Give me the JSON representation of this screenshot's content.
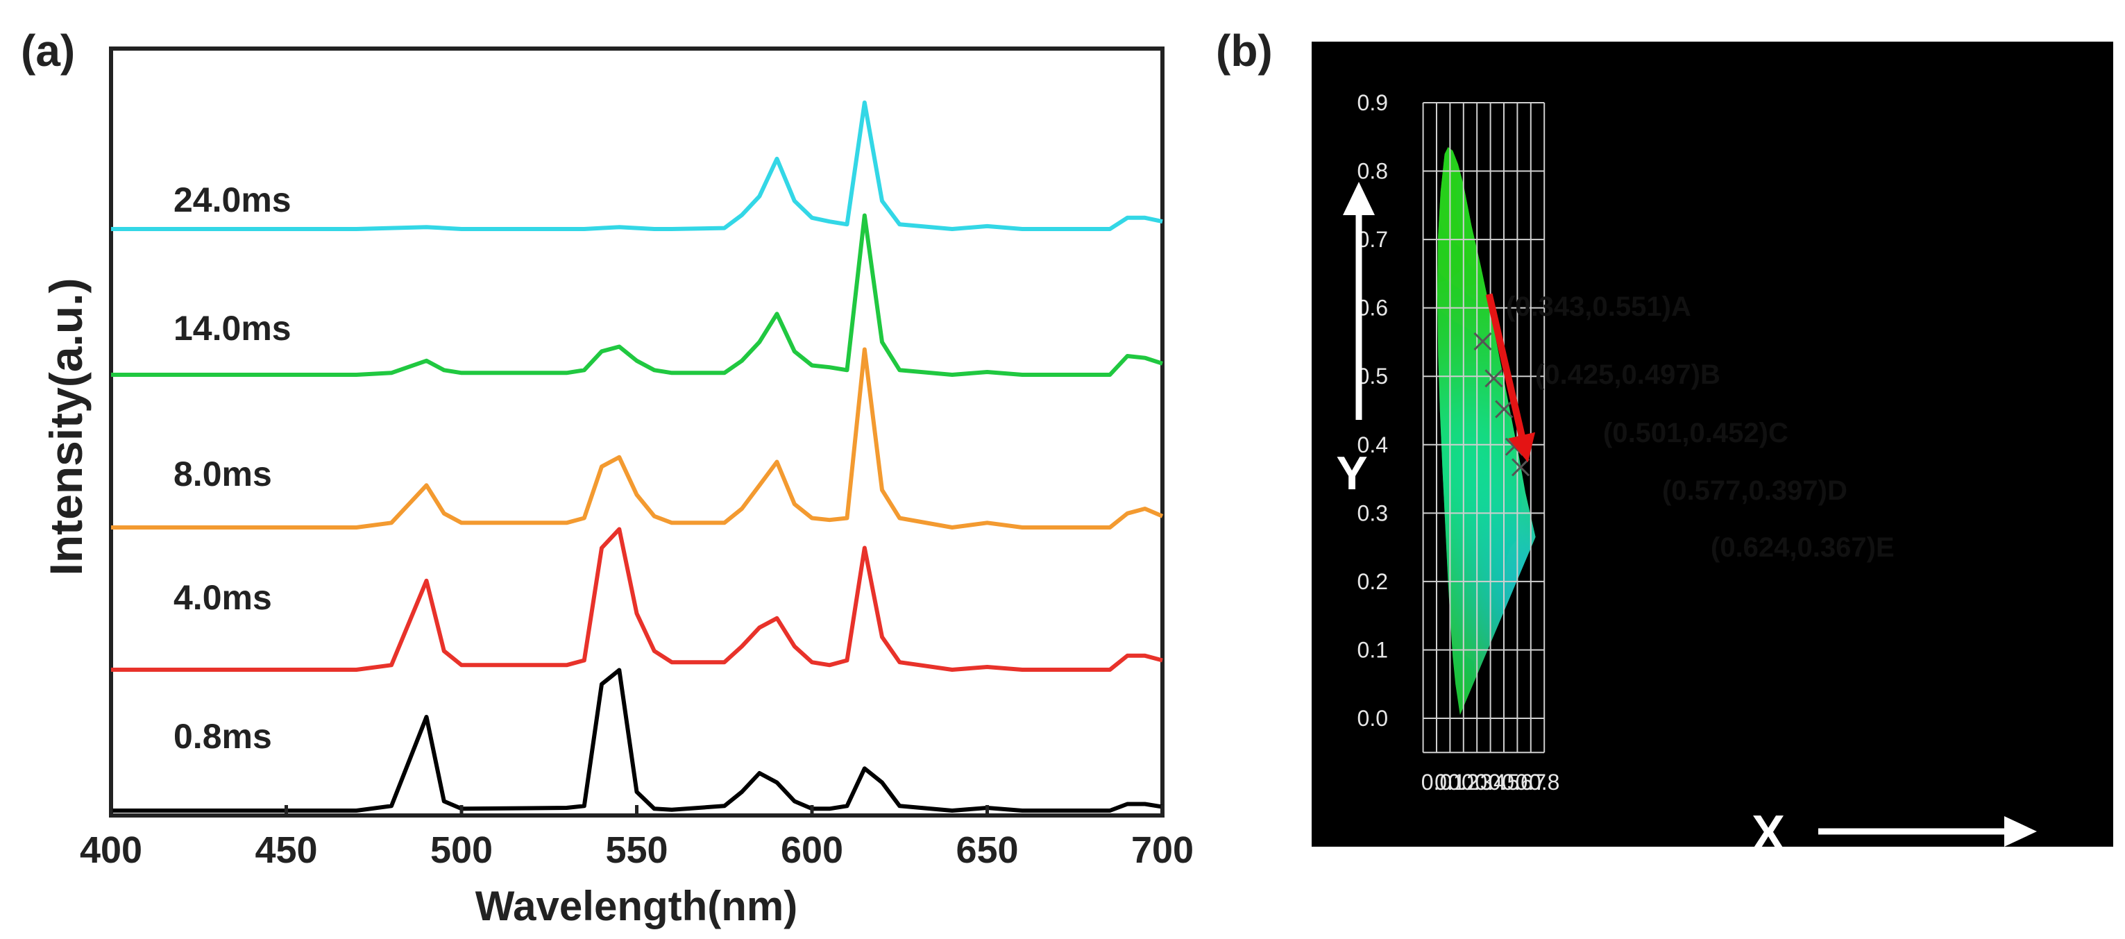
{
  "panel_a": {
    "label": "(a)",
    "chart_data": {
      "type": "line",
      "title": "",
      "xlabel": "Wavelength(nm)",
      "ylabel": "Intensity(a.u.)",
      "xlim": [
        400,
        700
      ],
      "xticks": [
        "400",
        "450",
        "500",
        "550",
        "600",
        "650",
        "700"
      ],
      "x": [
        400,
        470,
        480,
        490,
        495,
        500,
        530,
        535,
        540,
        545,
        550,
        555,
        560,
        575,
        580,
        585,
        590,
        595,
        600,
        605,
        610,
        615,
        620,
        625,
        640,
        650,
        660,
        685,
        690,
        695,
        700
      ],
      "series": [
        {
          "name": "0.8ms",
          "color": "#000000",
          "values": [
            0,
            0,
            0.05,
            1.0,
            0.1,
            0.02,
            0.03,
            0.05,
            1.35,
            1.5,
            0.2,
            0.02,
            0.01,
            0.05,
            0.2,
            0.4,
            0.3,
            0.1,
            0.02,
            0.02,
            0.05,
            0.45,
            0.3,
            0.05,
            0,
            0.03,
            0,
            0,
            0.07,
            0.07,
            0.04
          ]
        },
        {
          "name": "4.0ms",
          "color": "#e8322a",
          "values": [
            0,
            0,
            0.05,
            0.95,
            0.2,
            0.05,
            0.05,
            0.1,
            1.3,
            1.5,
            0.6,
            0.2,
            0.08,
            0.08,
            0.25,
            0.45,
            0.55,
            0.25,
            0.08,
            0.05,
            0.1,
            1.3,
            0.35,
            0.08,
            0,
            0.03,
            0,
            0,
            0.15,
            0.15,
            0.1
          ]
        },
        {
          "name": "8.0ms",
          "color": "#f39a30",
          "values": [
            0,
            0,
            0.05,
            0.45,
            0.15,
            0.05,
            0.05,
            0.1,
            0.65,
            0.75,
            0.35,
            0.12,
            0.05,
            0.05,
            0.2,
            0.45,
            0.7,
            0.25,
            0.1,
            0.08,
            0.1,
            1.9,
            0.4,
            0.1,
            0,
            0.05,
            0,
            0,
            0.15,
            0.2,
            0.12
          ]
        },
        {
          "name": "14.0ms",
          "color": "#20c840",
          "values": [
            0,
            0,
            0.02,
            0.15,
            0.05,
            0.02,
            0.02,
            0.05,
            0.25,
            0.3,
            0.15,
            0.05,
            0.02,
            0.02,
            0.15,
            0.35,
            0.65,
            0.25,
            0.1,
            0.08,
            0.05,
            1.7,
            0.35,
            0.05,
            0,
            0.03,
            0,
            0,
            0.2,
            0.18,
            0.12
          ]
        },
        {
          "name": "24.0ms",
          "color": "#33d7e6",
          "values": [
            0,
            0,
            0.01,
            0.02,
            0.01,
            0,
            0,
            0,
            0.01,
            0.02,
            0.01,
            0,
            0,
            0.01,
            0.15,
            0.35,
            0.75,
            0.3,
            0.12,
            0.08,
            0.05,
            1.35,
            0.3,
            0.05,
            0,
            0.03,
            0,
            0,
            0.12,
            0.12,
            0.08
          ]
        }
      ]
    }
  },
  "panel_b": {
    "label": "(b)",
    "chart_data": {
      "type": "scatter",
      "title": "",
      "xlabel": "X",
      "ylabel": "Y",
      "xlim": [
        -0.1,
        0.8
      ],
      "ylim": [
        -0.05,
        0.9
      ],
      "xticks": [
        "0.0",
        "0.1",
        "0.2",
        "0.3",
        "0.4",
        "0.5",
        "0.6",
        "0.7",
        "0.8"
      ],
      "yticks": [
        "0.0",
        "0.1",
        "0.2",
        "0.3",
        "0.4",
        "0.5",
        "0.6",
        "0.7",
        "0.8",
        "0.9"
      ],
      "points": [
        {
          "name": "A",
          "x": 0.343,
          "y": 0.551,
          "label": "(0.343,0.551)A"
        },
        {
          "name": "B",
          "x": 0.425,
          "y": 0.497,
          "label": "(0.425,0.497)B"
        },
        {
          "name": "C",
          "x": 0.501,
          "y": 0.452,
          "label": "(0.501,0.452)C"
        },
        {
          "name": "D",
          "x": 0.577,
          "y": 0.397,
          "label": "(0.577,0.397)D"
        },
        {
          "name": "E",
          "x": 0.624,
          "y": 0.367,
          "label": "(0.624,0.367)E"
        }
      ],
      "arrow": {
        "from": [
          0.39,
          0.62
        ],
        "to": [
          0.66,
          0.39
        ],
        "color": "#e41414"
      },
      "background": "#000000",
      "grid_color": "#cfcfcf"
    }
  }
}
